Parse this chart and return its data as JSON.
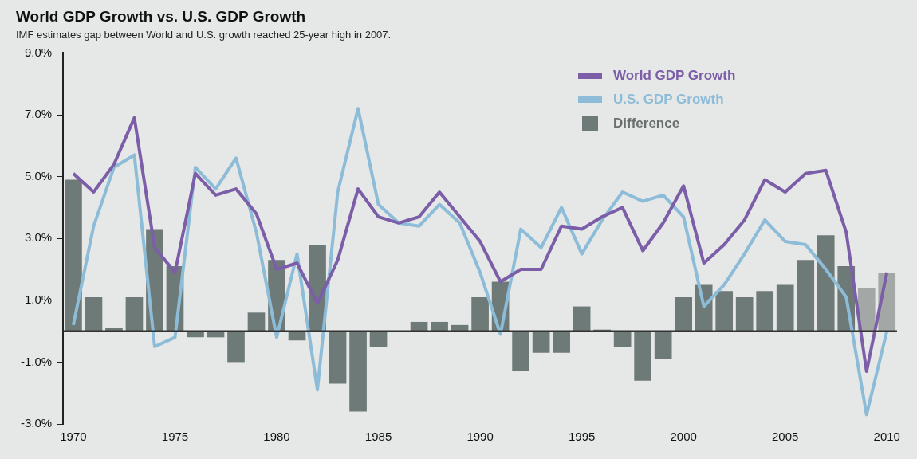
{
  "chart_data": {
    "type": "bar",
    "title": "World GDP Growth vs. U.S. GDP Growth",
    "subtitle": "IMF estimates gap between World and U.S. growth reached 25-year high in 2007.",
    "categories": [
      "1970",
      null,
      null,
      null,
      null,
      "1975",
      null,
      null,
      null,
      null,
      "1980",
      null,
      null,
      null,
      null,
      "1985",
      null,
      null,
      null,
      null,
      "1990",
      null,
      null,
      null,
      null,
      "1995",
      null,
      null,
      null,
      null,
      "2000",
      null,
      null,
      null,
      null,
      "2005",
      null,
      null,
      null,
      null,
      "2010"
    ],
    "series": [
      {
        "name": "World GDP Growth",
        "type": "line",
        "color": "#7b5ea7",
        "values": [
          5.1,
          4.5,
          5.4,
          6.9,
          2.7,
          1.9,
          5.1,
          4.4,
          4.6,
          3.8,
          2.0,
          2.2,
          0.9,
          2.3,
          4.6,
          3.7,
          3.5,
          3.7,
          4.5,
          3.7,
          2.9,
          1.6,
          2.0,
          2.0,
          3.4,
          3.3,
          3.7,
          4.0,
          2.6,
          3.5,
          4.7,
          2.2,
          2.8,
          3.6,
          4.9,
          4.5,
          5.1,
          5.2,
          3.2,
          -1.3,
          1.9
        ]
      },
      {
        "name": "U.S. GDP Growth",
        "type": "line",
        "color": "#8dbcd8",
        "values": [
          0.2,
          3.4,
          5.3,
          5.7,
          -0.5,
          -0.2,
          5.3,
          4.6,
          5.6,
          3.2,
          -0.2,
          2.5,
          -1.9,
          4.5,
          7.2,
          4.1,
          3.5,
          3.4,
          4.1,
          3.5,
          1.9,
          -0.1,
          3.3,
          2.7,
          4.0,
          2.5,
          3.6,
          4.5,
          4.2,
          4.4,
          3.7,
          0.8,
          1.5,
          2.5,
          3.6,
          2.9,
          2.8,
          2.0,
          1.1,
          -2.7,
          0.0
        ]
      },
      {
        "name": "Difference",
        "color": "#6e7a77",
        "colors": [
          "#6e7a77",
          "#6e7a77",
          "#6e7a77",
          "#6e7a77",
          "#6e7a77",
          "#6e7a77",
          "#6e7a77",
          "#6e7a77",
          "#6e7a77",
          "#6e7a77",
          "#6e7a77",
          "#6e7a77",
          "#6e7a77",
          "#6e7a77",
          "#6e7a77",
          "#6e7a77",
          "#6e7a77",
          "#6e7a77",
          "#6e7a77",
          "#6e7a77",
          "#6e7a77",
          "#6e7a77",
          "#6e7a77",
          "#6e7a77",
          "#6e7a77",
          "#6e7a77",
          "#6e7a77",
          "#6e7a77",
          "#6e7a77",
          "#6e7a77",
          "#6e7a77",
          "#6e7a77",
          "#6e7a77",
          "#6e7a77",
          "#6e7a77",
          "#6e7a77",
          "#6e7a77",
          "#6e7a77",
          "#6e7a77",
          "#a3a8a7",
          "#a3a8a7"
        ],
        "values": [
          4.9,
          1.1,
          0.1,
          1.1,
          3.3,
          2.1,
          -0.2,
          -0.2,
          -1.0,
          0.6,
          2.3,
          -0.3,
          2.8,
          -1.7,
          -2.6,
          -0.5,
          0,
          0.3,
          0.3,
          0.2,
          1.1,
          1.6,
          -1.3,
          -0.7,
          -0.7,
          0.8,
          0.05,
          -0.5,
          -1.6,
          -0.9,
          1.1,
          1.5,
          1.3,
          1.1,
          1.3,
          1.5,
          2.3,
          3.1,
          2.1,
          1.4,
          1.9
        ]
      }
    ],
    "ylim": [
      -3,
      9
    ],
    "yticks": [
      {
        "value": -3,
        "label": "-3.0%"
      },
      {
        "value": -1,
        "label": "-1.0%"
      },
      {
        "value": 1,
        "label": "1.0%"
      },
      {
        "value": 3,
        "label": "3.0%"
      },
      {
        "value": 5,
        "label": "5.0%"
      },
      {
        "value": 7,
        "label": "7.0%"
      },
      {
        "value": 9,
        "label": "9.0%"
      }
    ],
    "ref_lines": [
      {
        "axis": "y",
        "value": 0,
        "color": "#333333"
      }
    ],
    "grid": false,
    "legend": "top right"
  }
}
